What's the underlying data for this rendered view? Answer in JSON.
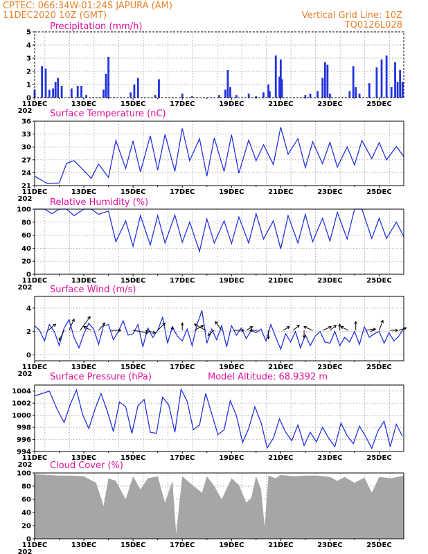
{
  "header": {
    "line1": "CPTEC:   066:34W-01:24S   JAPURA (AM)",
    "line2": "11DEC2020  10Z (GMT)",
    "grid_note": "Vertical Grid Line: 10Z",
    "run_code": "TQ0126L028"
  },
  "colors": {
    "header": "#e8822a",
    "title": "#e0109a",
    "series": "#2233dd",
    "cloud": "#a6a6a6"
  },
  "time_axis": {
    "start_day": 11,
    "end_day": 26,
    "labels": [
      "11DEC",
      "13DEC",
      "15DEC",
      "17DEC",
      "19DEC",
      "21DEC",
      "23DEC",
      "25DEC"
    ],
    "label_days": [
      11,
      13,
      15,
      17,
      19,
      21,
      23,
      25
    ],
    "grid_hour_utc": 10,
    "year_stub": "202"
  },
  "chart_data": [
    {
      "id": "precip",
      "type": "bar",
      "title": "Precipitation (mm/h)",
      "ylim": [
        0,
        5
      ],
      "yticks": [
        0,
        1,
        2,
        3,
        4,
        5
      ],
      "x_unit": "day of Dec 2020",
      "x": [
        11.0,
        11.3,
        11.45,
        11.6,
        11.75,
        11.85,
        11.95,
        12.1,
        12.5,
        12.75,
        12.9,
        13.1,
        13.8,
        13.9,
        14.0,
        14.9,
        15.05,
        15.2,
        15.9,
        16.05,
        17.0,
        17.4,
        18.5,
        18.75,
        18.85,
        18.95,
        19.2,
        19.7,
        20.0,
        20.3,
        20.5,
        20.55,
        20.8,
        20.95,
        21.0,
        21.05,
        22.0,
        22.2,
        22.5,
        22.7,
        22.8,
        22.9,
        23.0,
        23.8,
        23.95,
        24.05,
        24.2,
        24.6,
        24.9,
        25.1,
        25.3,
        25.5,
        25.65,
        25.75,
        25.85,
        25.95
      ],
      "values": [
        0.6,
        2.4,
        2.2,
        0.6,
        0.7,
        1.2,
        1.5,
        0.9,
        0.7,
        0.9,
        0.9,
        0.2,
        0.6,
        1.8,
        3.1,
        0.4,
        1.0,
        1.5,
        0.2,
        1.4,
        0.3,
        0.1,
        0.2,
        0.6,
        2.1,
        0.8,
        0.2,
        0.3,
        0.1,
        0.4,
        1.0,
        0.5,
        3.2,
        1.6,
        2.9,
        1.4,
        0.2,
        0.3,
        0.5,
        1.5,
        2.7,
        2.5,
        0.3,
        0.5,
        2.4,
        0.8,
        0.3,
        1.1,
        2.3,
        2.9,
        3.2,
        0.8,
        2.7,
        1.2,
        2.1,
        1.2
      ]
    },
    {
      "id": "temp",
      "type": "line",
      "title": "Surface Temperature (nC)",
      "ylim": [
        21,
        36
      ],
      "yticks": [
        21,
        24,
        27,
        30,
        33,
        36
      ],
      "x_unit": "day of Dec 2020",
      "x": [
        11.0,
        11.5,
        12.0,
        12.3,
        12.6,
        13.0,
        13.3,
        13.6,
        14.0,
        14.3,
        14.7,
        15.0,
        15.3,
        15.7,
        16.0,
        16.3,
        16.7,
        17.0,
        17.3,
        17.7,
        18.0,
        18.3,
        18.7,
        19.0,
        19.3,
        19.7,
        20.0,
        20.3,
        20.7,
        21.0,
        21.3,
        21.7,
        22.0,
        22.3,
        22.7,
        23.0,
        23.3,
        23.7,
        24.0,
        24.3,
        24.7,
        25.0,
        25.3,
        25.7,
        26.0
      ],
      "values": [
        23.2,
        21.5,
        21.6,
        26.2,
        26.8,
        24.5,
        22.7,
        26.0,
        22.9,
        31.5,
        25.0,
        31.4,
        24.2,
        32.6,
        24.6,
        32.9,
        24.3,
        34.3,
        26.8,
        31.9,
        23.2,
        32.1,
        24.3,
        32.8,
        23.9,
        31.6,
        26.8,
        30.5,
        25.9,
        34.6,
        28.3,
        31.9,
        25.2,
        31.2,
        26.1,
        31.1,
        25.3,
        30.0,
        25.8,
        31.5,
        27.3,
        31.0,
        27.0,
        30.1,
        27.8
      ]
    },
    {
      "id": "rh",
      "type": "line",
      "title": "Relative Humidity (%)",
      "ylim": [
        0,
        100
      ],
      "yticks": [
        0,
        20,
        40,
        60,
        80,
        100
      ],
      "x_unit": "day of Dec 2020",
      "x": [
        11.0,
        11.4,
        11.7,
        12.0,
        12.3,
        12.6,
        13.0,
        13.3,
        13.6,
        14.0,
        14.3,
        14.7,
        15.0,
        15.3,
        15.7,
        16.0,
        16.3,
        16.7,
        17.0,
        17.3,
        17.7,
        18.0,
        18.3,
        18.7,
        19.0,
        19.3,
        19.7,
        20.0,
        20.3,
        20.7,
        21.0,
        21.3,
        21.7,
        22.0,
        22.3,
        22.7,
        23.0,
        23.3,
        23.7,
        24.0,
        24.3,
        24.7,
        25.0,
        25.3,
        25.7,
        26.0
      ],
      "values": [
        100,
        100,
        93,
        100,
        100,
        90,
        100,
        100,
        92,
        97,
        50,
        82,
        43,
        90,
        45,
        90,
        48,
        91,
        49,
        80,
        35,
        85,
        48,
        82,
        47,
        88,
        48,
        93,
        54,
        82,
        39,
        90,
        48,
        92,
        50,
        86,
        51,
        95,
        54,
        100,
        100,
        55,
        86,
        55,
        80,
        58
      ]
    },
    {
      "id": "wind",
      "type": "line",
      "title": "Surface Wind (m/s)",
      "ylim": [
        -0.5,
        5
      ],
      "yticks": [
        0,
        2,
        4
      ],
      "x_unit": "day of Dec 2020",
      "x": [
        11.0,
        11.2,
        11.4,
        11.6,
        11.8,
        12.0,
        12.2,
        12.4,
        12.6,
        12.8,
        13.0,
        13.2,
        13.4,
        13.6,
        13.8,
        14.0,
        14.2,
        14.4,
        14.6,
        14.8,
        15.0,
        15.2,
        15.4,
        15.6,
        15.8,
        16.0,
        16.2,
        16.4,
        16.6,
        16.8,
        17.0,
        17.2,
        17.4,
        17.6,
        17.8,
        18.0,
        18.2,
        18.4,
        18.6,
        18.8,
        19.0,
        19.2,
        19.4,
        19.6,
        19.8,
        20.0,
        20.2,
        20.4,
        20.6,
        20.8,
        21.0,
        21.2,
        21.4,
        21.6,
        21.8,
        22.0,
        22.2,
        22.4,
        22.6,
        22.8,
        23.0,
        23.2,
        23.4,
        23.6,
        23.8,
        24.0,
        24.2,
        24.4,
        24.6,
        24.8,
        25.0,
        25.2,
        25.4,
        25.6,
        25.8,
        26.0
      ],
      "values": [
        2.5,
        2.1,
        1.2,
        2.6,
        2.0,
        0.8,
        2.3,
        3.0,
        1.5,
        0.6,
        1.8,
        2.7,
        2.2,
        0.9,
        2.5,
        2.6,
        1.3,
        2.0,
        2.9,
        1.7,
        1.8,
        2.6,
        0.7,
        2.3,
        1.5,
        2.1,
        3.2,
        1.0,
        2.4,
        1.6,
        1.2,
        2.2,
        0.8,
        2.6,
        3.8,
        1.0,
        2.2,
        1.3,
        2.5,
        0.7,
        2.5,
        1.7,
        2.3,
        1.4,
        2.1,
        1.9,
        2.2,
        1.2,
        2.6,
        1.5,
        0.5,
        1.8,
        1.1,
        2.0,
        0.6,
        1.7,
        0.8,
        1.6,
        2.0,
        1.1,
        1.0,
        2.0,
        0.8,
        1.5,
        1.1,
        2.0,
        0.9,
        2.4,
        1.5,
        1.8,
        2.0,
        1.0,
        1.9,
        1.2,
        1.6,
        2.3
      ],
      "vectors": {
        "x": [
          11.55,
          12.2,
          12.4,
          12.85,
          13.3,
          13.6,
          14.1,
          15.0,
          15.5,
          16.0,
          16.6,
          17.0,
          17.5,
          17.95,
          18.3,
          18.6,
          19.1,
          19.6,
          20.05,
          20.5,
          21.1,
          21.5,
          21.95,
          22.3,
          22.7,
          23.0,
          23.4,
          23.75,
          24.05,
          24.45,
          24.75,
          25.0,
          25.45,
          25.8
        ],
        "u": [
          0.6,
          -0.4,
          0.4,
          0.8,
          -0.6,
          0.5,
          0.8,
          1.2,
          0.8,
          0.6,
          0.0,
          0.0,
          0.7,
          -0.9,
          -0.5,
          -0.5,
          0.8,
          0.5,
          -0.6,
          0.0,
          0.5,
          0.5,
          0.0,
          -0.7,
          0.7,
          0.5,
          0.0,
          -0.6,
          0.0,
          0.8,
          0.0,
          0.3,
          0.6,
          0.6
        ],
        "v": [
          0.5,
          -0.8,
          0.9,
          1.1,
          0.3,
          0.6,
          0.0,
          -0.2,
          -0.2,
          0.6,
          0.3,
          0.6,
          0.4,
          0.5,
          -0.4,
          0.7,
          0.0,
          0.3,
          0.0,
          -0.7,
          0.3,
          0.4,
          -0.6,
          0.3,
          0.3,
          0.4,
          0.5,
          0.3,
          0.7,
          0.1,
          0.0,
          0.8,
          0.0,
          0.2
        ],
        "baseline": 2.1
      }
    },
    {
      "id": "pres",
      "type": "line",
      "title": "Surface Pressure (hPa)",
      "annotation": "Model Altitude: 68.9392 m",
      "ylim": [
        994,
        1005
      ],
      "yticks": [
        994,
        996,
        998,
        1000,
        1002,
        1004
      ],
      "x_unit": "day of Dec 2020",
      "x": [
        11.0,
        11.3,
        11.6,
        11.9,
        12.2,
        12.45,
        12.7,
        12.95,
        13.2,
        13.45,
        13.7,
        13.95,
        14.2,
        14.45,
        14.7,
        14.95,
        15.2,
        15.45,
        15.7,
        15.95,
        16.2,
        16.45,
        16.7,
        16.95,
        17.2,
        17.45,
        17.7,
        17.95,
        18.2,
        18.45,
        18.7,
        18.95,
        19.2,
        19.45,
        19.7,
        19.95,
        20.2,
        20.45,
        20.7,
        20.95,
        21.2,
        21.45,
        21.7,
        21.95,
        22.2,
        22.45,
        22.7,
        22.95,
        23.2,
        23.45,
        23.7,
        23.95,
        24.2,
        24.45,
        24.7,
        24.95,
        25.2,
        25.45,
        25.7,
        25.95
      ],
      "values": [
        1003.2,
        1003.6,
        1004.0,
        1001.1,
        998.8,
        1001.8,
        1004.2,
        1000.1,
        997.8,
        1001.0,
        1003.6,
        1000.7,
        997.3,
        1002.2,
        1001.4,
        997.0,
        1001.6,
        1002.6,
        997.2,
        997.0,
        1003.0,
        1001.7,
        997.2,
        1004.3,
        1002.3,
        997.6,
        998.4,
        1003.6,
        1000.2,
        996.8,
        997.6,
        1002.4,
        999.9,
        995.5,
        997.8,
        1001.4,
        998.8,
        994.6,
        996.2,
        999.4,
        997.2,
        995.8,
        998.4,
        995.0,
        997.2,
        995.6,
        998.0,
        996.2,
        994.8,
        998.7,
        996.6,
        995.3,
        998.2,
        996.5,
        994.5,
        997.4,
        999.0,
        994.8,
        998.5,
        996.5
      ]
    },
    {
      "id": "cloud",
      "type": "area",
      "title": "Cloud Cover (%)",
      "ylim": [
        0,
        100
      ],
      "yticks": [
        0,
        20,
        40,
        60,
        80,
        100
      ],
      "x_unit": "day of Dec 2020",
      "x": [
        11.0,
        11.5,
        12.0,
        12.5,
        13.0,
        13.5,
        13.8,
        14.0,
        14.3,
        14.7,
        15.0,
        15.3,
        15.6,
        16.0,
        16.3,
        16.6,
        16.75,
        17.0,
        17.4,
        17.8,
        18.0,
        18.3,
        18.6,
        19.0,
        19.3,
        19.6,
        19.8,
        20.0,
        20.2,
        20.35,
        20.5,
        20.8,
        21.0,
        21.5,
        22.0,
        22.5,
        23.0,
        23.3,
        23.6,
        24.0,
        24.4,
        24.7,
        25.0,
        25.5,
        26.0
      ],
      "values": [
        98,
        97,
        96,
        96,
        95,
        85,
        50,
        92,
        88,
        60,
        95,
        75,
        92,
        95,
        55,
        88,
        8,
        95,
        82,
        70,
        95,
        80,
        60,
        92,
        82,
        55,
        62,
        95,
        75,
        18,
        96,
        92,
        97,
        95,
        96,
        96,
        94,
        88,
        94,
        85,
        93,
        70,
        94,
        92,
        96
      ]
    }
  ]
}
